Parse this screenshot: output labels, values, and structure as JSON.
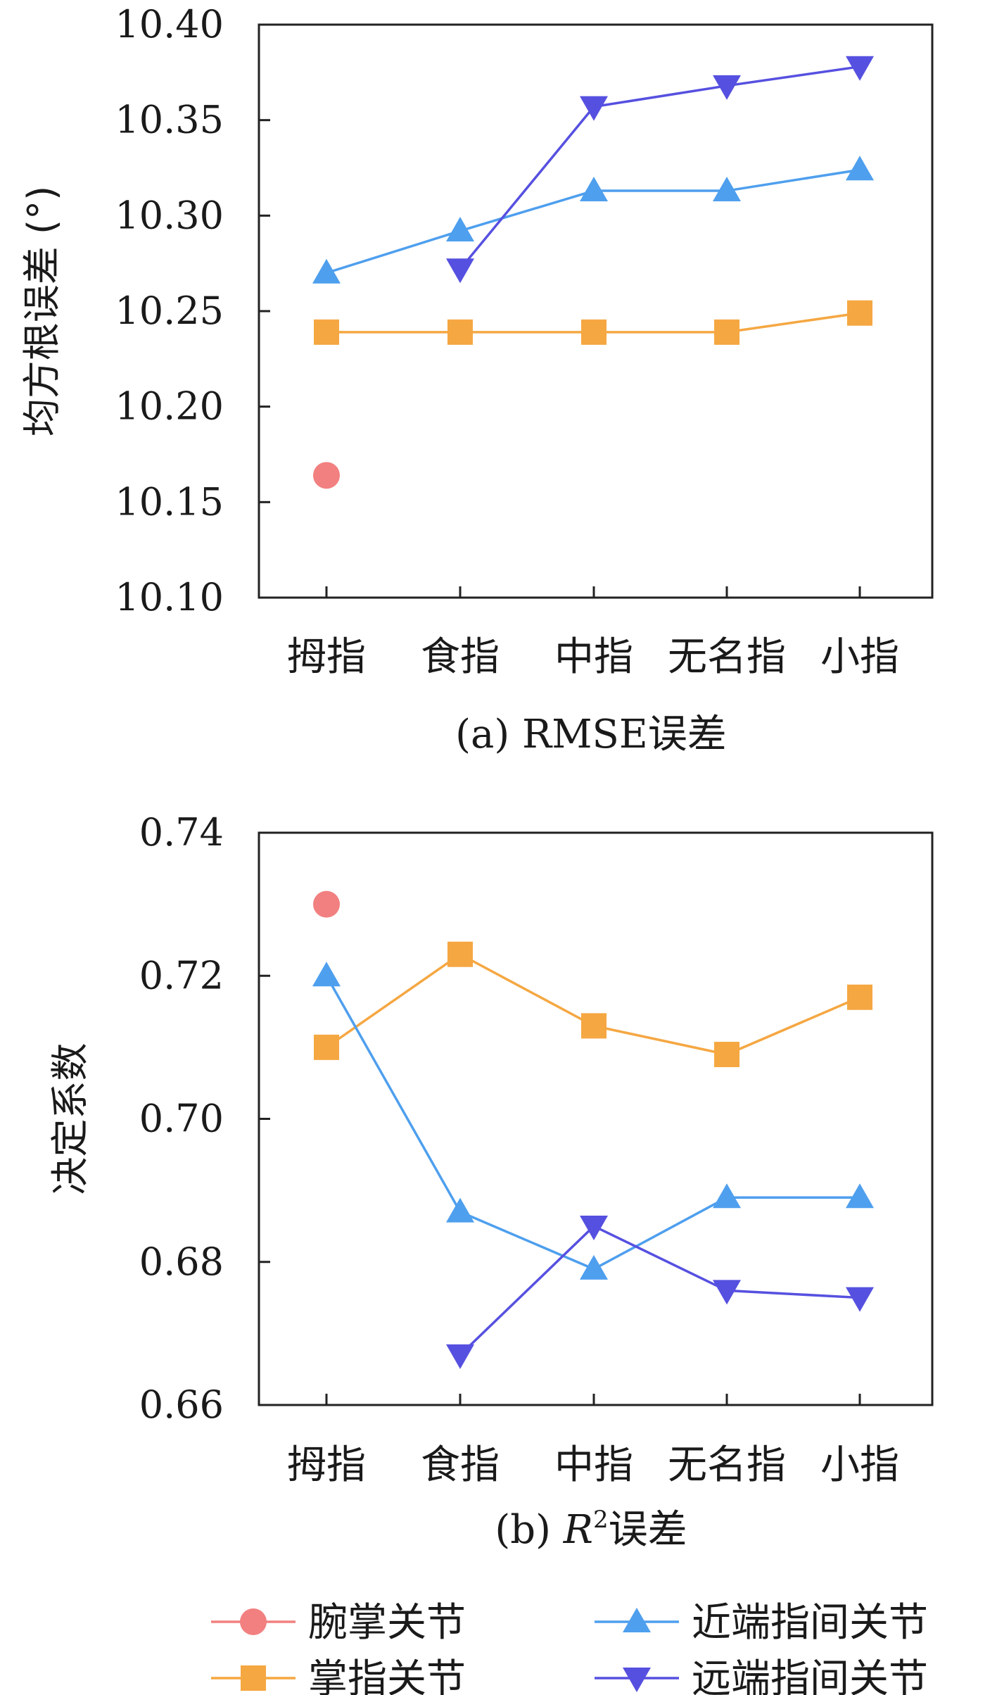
{
  "colors": {
    "wrist": "#f28080",
    "mcp": "#f5a742",
    "pip": "#4e9fee",
    "dip": "#5650e0"
  },
  "legend": {
    "items": [
      {
        "key": "wrist",
        "label": "腕掌关节",
        "marker": "circle"
      },
      {
        "key": "pip",
        "label": "近端指间关节",
        "marker": "triangle-up"
      },
      {
        "key": "mcp",
        "label": "掌指关节",
        "marker": "square"
      },
      {
        "key": "dip",
        "label": "远端指间关节",
        "marker": "triangle-down"
      }
    ]
  },
  "chart_data": [
    {
      "type": "line",
      "caption": "(a) RMSE误差",
      "ylabel": "均方根误差 (°)",
      "categories": [
        "拇指",
        "食指",
        "中指",
        "无名指",
        "小指"
      ],
      "ylim": [
        10.1,
        10.4
      ],
      "yticks": [
        "10.10",
        "10.15",
        "10.20",
        "10.25",
        "10.30",
        "10.35",
        "10.40"
      ],
      "series": [
        {
          "key": "wrist",
          "name": "腕掌关节",
          "marker": "circle",
          "values": [
            10.164,
            null,
            null,
            null,
            null
          ]
        },
        {
          "key": "mcp",
          "name": "掌指关节",
          "marker": "square",
          "values": [
            10.239,
            10.239,
            10.239,
            10.239,
            10.249
          ]
        },
        {
          "key": "pip",
          "name": "近端指间关节",
          "marker": "triangle-up",
          "values": [
            10.27,
            10.292,
            10.313,
            10.313,
            10.324
          ]
        },
        {
          "key": "dip",
          "name": "远端指间关节",
          "marker": "triangle-down",
          "values": [
            null,
            10.272,
            10.357,
            10.368,
            10.378
          ]
        }
      ]
    },
    {
      "type": "line",
      "caption_prefix": "(b) ",
      "caption_var": "R",
      "caption_sup": "2",
      "caption_suffix": "误差",
      "ylabel": "决定系数",
      "categories": [
        "拇指",
        "食指",
        "中指",
        "无名指",
        "小指"
      ],
      "ylim": [
        0.66,
        0.74
      ],
      "yticks": [
        "0.66",
        "0.68",
        "0.70",
        "0.72",
        "0.74"
      ],
      "series": [
        {
          "key": "wrist",
          "name": "腕掌关节",
          "marker": "circle",
          "values": [
            0.73,
            null,
            null,
            null,
            null
          ]
        },
        {
          "key": "mcp",
          "name": "掌指关节",
          "marker": "square",
          "values": [
            0.71,
            0.723,
            0.713,
            0.709,
            0.717
          ]
        },
        {
          "key": "pip",
          "name": "近端指间关节",
          "marker": "triangle-up",
          "values": [
            0.72,
            0.687,
            0.679,
            0.689,
            0.689
          ]
        },
        {
          "key": "dip",
          "name": "远端指间关节",
          "marker": "triangle-down",
          "values": [
            null,
            0.667,
            0.685,
            0.676,
            0.675
          ]
        }
      ]
    }
  ]
}
